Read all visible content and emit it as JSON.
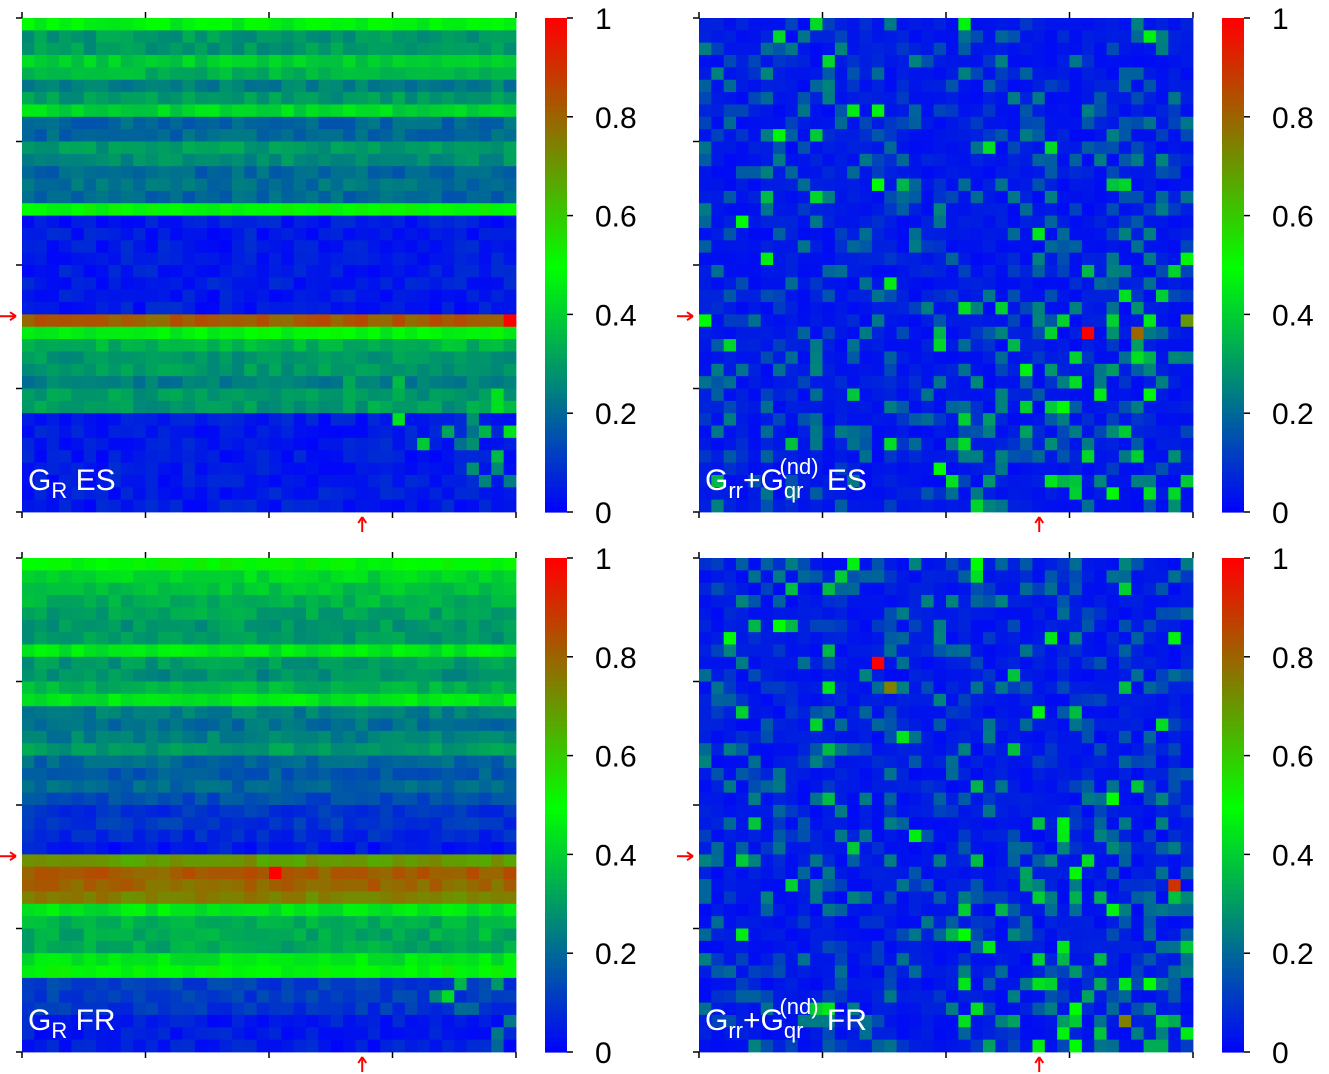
{
  "figure": {
    "colormap": [
      "#0000ff",
      "#00ff00",
      "#ff0000"
    ]
  },
  "colorbar_ticks": [
    "0",
    "0.2",
    "0.4",
    "0.6",
    "0.8",
    "1"
  ],
  "chart_data": [
    {
      "type": "heatmap",
      "label_main": "G",
      "label_sub": "R",
      "label_sup": "",
      "label_suffix": "ES",
      "value_range": [
        0,
        1
      ],
      "grid_size": [
        40,
        40
      ],
      "marker_row": 23,
      "marker_col": 23,
      "marker_color": "#ff0000",
      "row_profile": [
        0.48,
        0.3,
        0.3,
        0.4,
        0.35,
        0.25,
        0.3,
        0.42,
        0.2,
        0.2,
        0.3,
        0.28,
        0.2,
        0.22,
        0.2,
        0.5,
        0.05,
        0.05,
        0.05,
        0.05,
        0.05,
        0.05,
        0.05,
        0.05,
        0.82,
        0.48,
        0.35,
        0.3,
        0.3,
        0.25,
        0.3,
        0.3,
        0.05,
        0.05,
        0.05,
        0.05,
        0.05,
        0.05,
        0.05,
        0.05
      ],
      "peak": {
        "row": 24,
        "col": 39,
        "value": 1.0
      }
    },
    {
      "type": "heatmap",
      "label_main": "G",
      "label_sub": "rr",
      "label_sup": "",
      "label_plus": "+",
      "label_main2": "G",
      "label_sub2": "qr",
      "label_sup2": "(nd)",
      "label_suffix": "ES",
      "value_range": [
        0,
        1
      ],
      "grid_size": [
        40,
        40
      ],
      "marker_row": 23,
      "marker_col": 23,
      "marker_color": "#ff0000",
      "sparse": true,
      "peaks": [
        {
          "row": 25,
          "col": 31,
          "value": 1.0
        },
        {
          "row": 25,
          "col": 35,
          "value": 0.8
        },
        {
          "row": 24,
          "col": 39,
          "value": 0.7
        }
      ]
    },
    {
      "type": "heatmap",
      "label_main": "G",
      "label_sub": "R",
      "label_sup": "",
      "label_suffix": "FR",
      "value_range": [
        0,
        1
      ],
      "grid_size": [
        40,
        40
      ],
      "marker_row": 23,
      "marker_col": 23,
      "marker_color": "#ff0000",
      "row_profile": [
        0.5,
        0.42,
        0.38,
        0.35,
        0.32,
        0.3,
        0.3,
        0.45,
        0.3,
        0.28,
        0.35,
        0.45,
        0.25,
        0.22,
        0.25,
        0.3,
        0.2,
        0.18,
        0.2,
        0.15,
        0.1,
        0.1,
        0.08,
        0.05,
        0.7,
        0.82,
        0.8,
        0.75,
        0.45,
        0.35,
        0.33,
        0.33,
        0.45,
        0.5,
        0.12,
        0.12,
        0.1,
        0.05,
        0.05,
        0.05
      ],
      "peak": {
        "row": 25,
        "col": 20,
        "value": 1.0
      }
    },
    {
      "type": "heatmap",
      "label_main": "G",
      "label_sub": "rr",
      "label_sup": "",
      "label_plus": "+",
      "label_main2": "G",
      "label_sub2": "qr",
      "label_sup2": "(nd)",
      "label_suffix": "FR",
      "value_range": [
        0,
        1
      ],
      "grid_size": [
        40,
        40
      ],
      "marker_row": 23,
      "marker_col": 23,
      "marker_color": "#ff0000",
      "sparse": true,
      "peaks": [
        {
          "row": 8,
          "col": 14,
          "value": 1.0
        },
        {
          "row": 10,
          "col": 15,
          "value": 0.75
        },
        {
          "row": 26,
          "col": 38,
          "value": 0.9
        },
        {
          "row": 37,
          "col": 34,
          "value": 0.75
        }
      ]
    }
  ]
}
